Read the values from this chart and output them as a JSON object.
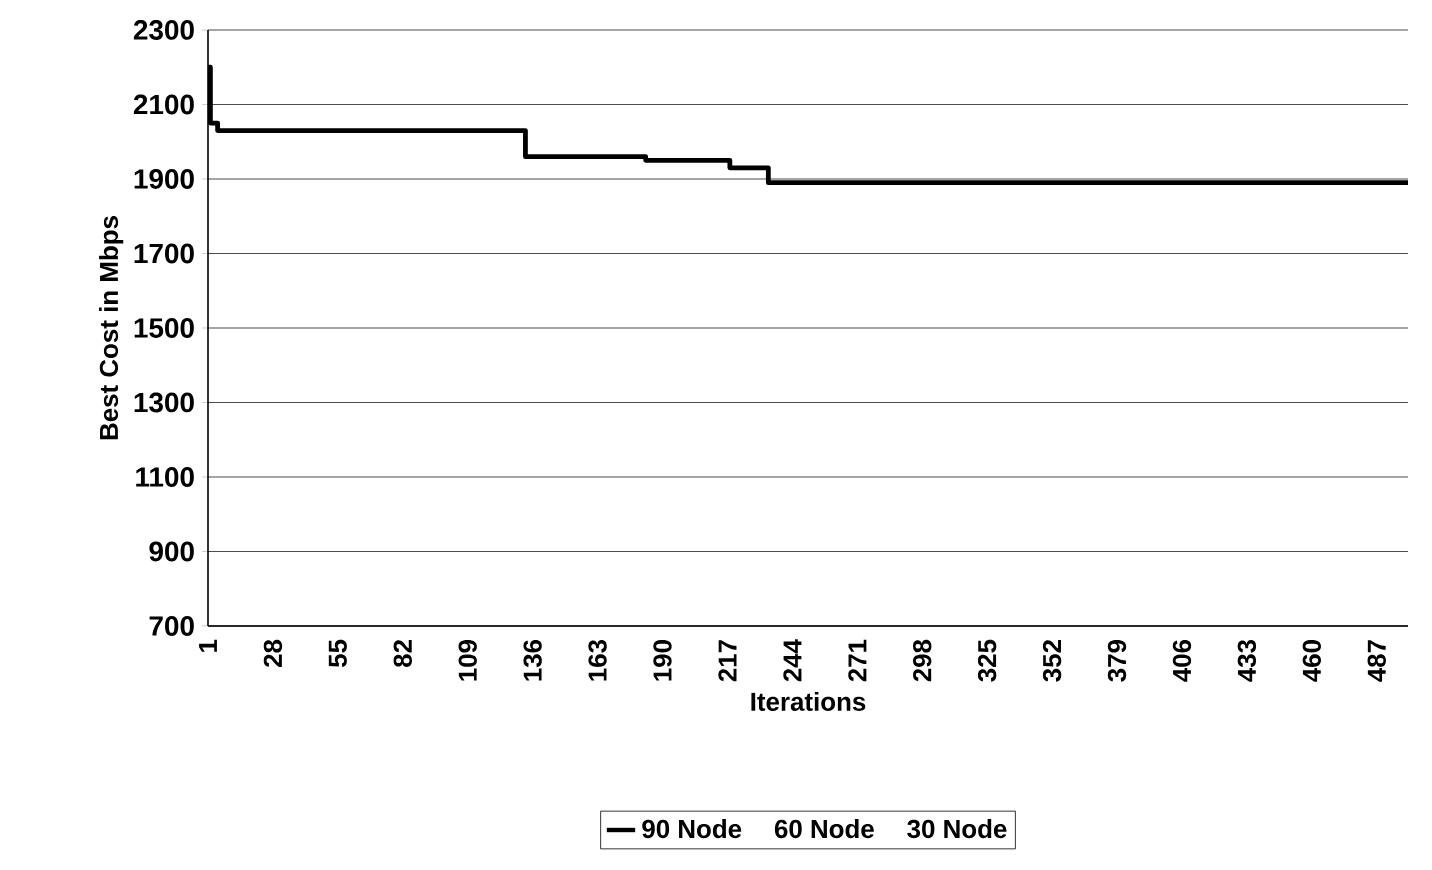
{
  "chart_data": {
    "type": "step",
    "xlabel": "Iterations",
    "ylabel": "Best Cost in Mbps",
    "xlim": [
      1,
      500
    ],
    "xticks": [
      1,
      28,
      55,
      82,
      109,
      136,
      163,
      190,
      217,
      244,
      271,
      298,
      325,
      352,
      379,
      406,
      433,
      460,
      487
    ],
    "ylim": [
      700,
      2300
    ],
    "yticks": [
      700,
      900,
      1100,
      1300,
      1500,
      1700,
      1900,
      2100,
      2300
    ],
    "grid": "y",
    "legend": "bottom",
    "series": [
      {
        "name": "90 Node",
        "color": "#000000",
        "x": [
          1,
          2,
          5,
          133,
          183,
          218,
          234,
          500
        ],
        "values": [
          2200,
          2050,
          2030,
          1960,
          1950,
          1930,
          1890,
          1890
        ]
      },
      {
        "name": "60 Node"
      },
      {
        "name": "30 Node"
      }
    ]
  }
}
